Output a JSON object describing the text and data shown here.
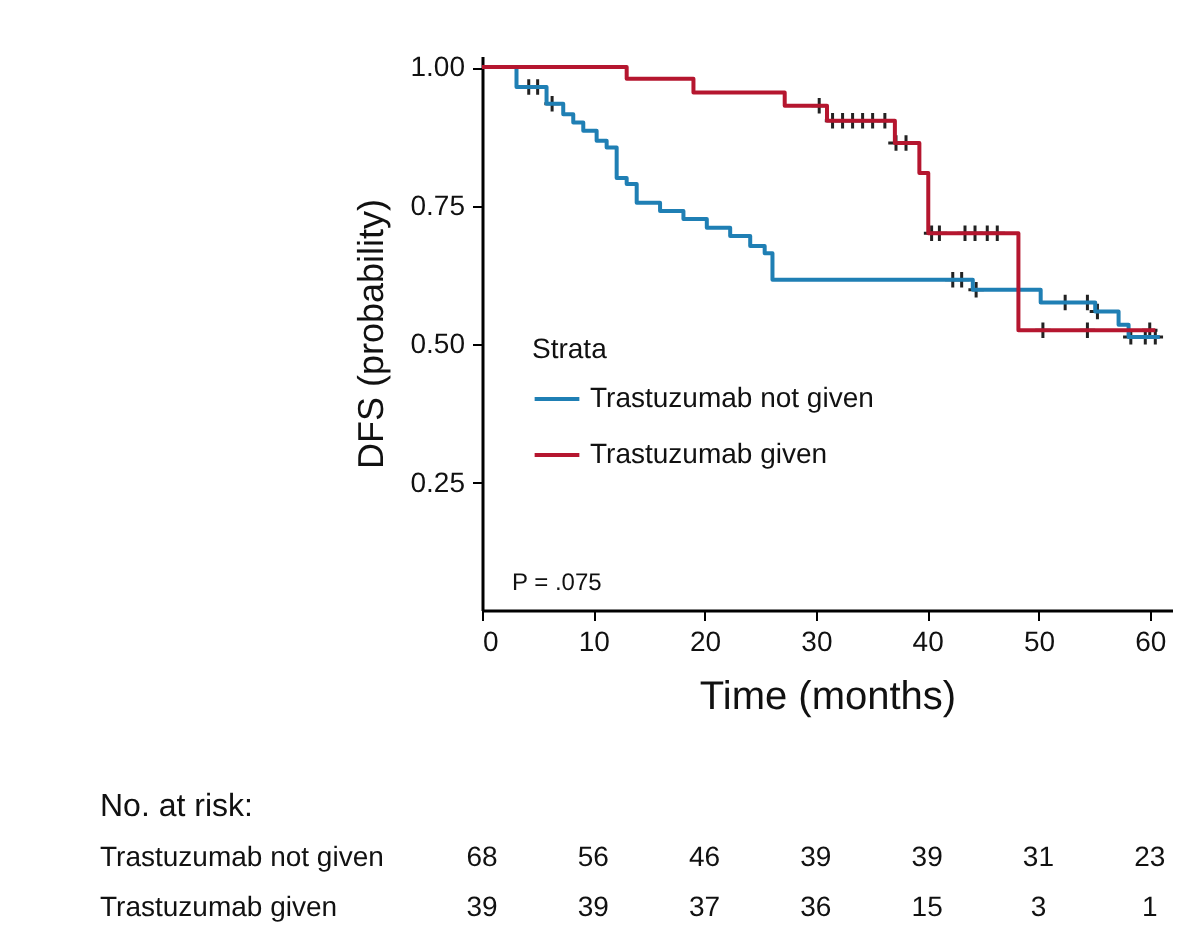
{
  "chart_data": {
    "type": "step",
    "xlabel": "Time (months)",
    "ylabel": "DFS (probability)",
    "legend_title": "Strata",
    "xlim": [
      0,
      62
    ],
    "xticks": [
      0,
      10,
      20,
      30,
      40,
      50,
      60
    ],
    "ylim": [
      0.02,
      1.02
    ],
    "yticks": [
      0.25,
      {
        "value": 0.5,
        "label": "0.50"
      },
      0.75,
      {
        "value": 1,
        "label": "1.00"
      }
    ],
    "grid": false,
    "legend": "left",
    "series": [
      {
        "name": "Trastuzumab not given",
        "color": "#1f7fb4",
        "x": [
          0,
          3.1,
          5.8,
          7.3,
          8.2,
          9.1,
          10.3,
          11.2,
          12.1,
          13.0,
          13.9,
          16.0,
          18.1,
          20.2,
          22.3,
          24.1,
          25.4,
          26.1,
          44.1,
          50.2,
          55.1,
          57.2,
          58.1,
          60.9
        ],
        "values": [
          1.0,
          0.964,
          0.934,
          0.915,
          0.9,
          0.885,
          0.867,
          0.855,
          0.8,
          0.789,
          0.755,
          0.74,
          0.726,
          0.71,
          0.695,
          0.677,
          0.664,
          0.616,
          0.598,
          0.575,
          0.559,
          0.535,
          0.513,
          0.513
        ]
      },
      {
        "name": "Trastuzumab given",
        "color": "#b5162f",
        "x": [
          0,
          13.0,
          19.0,
          27.2,
          31.0,
          37.1,
          39.3,
          40.1,
          48.2,
          60.5
        ],
        "values": [
          1.0,
          0.979,
          0.954,
          0.93,
          0.903,
          0.863,
          0.809,
          0.7,
          0.525,
          0.525
        ]
      },
      {
        "type": "scatter",
        "marker": "cross",
        "color": "#222222",
        "x": [
          4.2,
          5.0,
          6.3,
          42.3,
          43.1,
          44.4,
          52.4,
          54.4,
          55.3,
          58.3,
          59.6,
          60.5
        ],
        "values": [
          0.964,
          0.964,
          0.934,
          0.616,
          0.616,
          0.598,
          0.575,
          0.575,
          0.559,
          0.513,
          0.513,
          0.513
        ]
      },
      {
        "type": "scatter",
        "marker": "cross",
        "color": "#222222",
        "x": [
          30.3,
          31.5,
          32.4,
          33.3,
          34.2,
          35.1,
          36.2,
          37.2,
          38.1,
          40.4,
          41.1,
          43.4,
          44.3,
          45.4,
          46.3,
          50.4,
          54.4,
          60.0
        ],
        "values": [
          0.93,
          0.903,
          0.903,
          0.903,
          0.903,
          0.903,
          0.903,
          0.863,
          0.863,
          0.7,
          0.7,
          0.7,
          0.7,
          0.7,
          0.7,
          0.525,
          0.525,
          0.525
        ]
      }
    ],
    "annotations": [
      "P = .075",
      "No. at risk:",
      "Trastuzumab not given",
      "68",
      "56",
      "46",
      "39",
      "39",
      "31",
      "23",
      "Trastuzumab given",
      "39",
      "39",
      "37",
      "36",
      "15",
      "3",
      "1"
    ]
  }
}
